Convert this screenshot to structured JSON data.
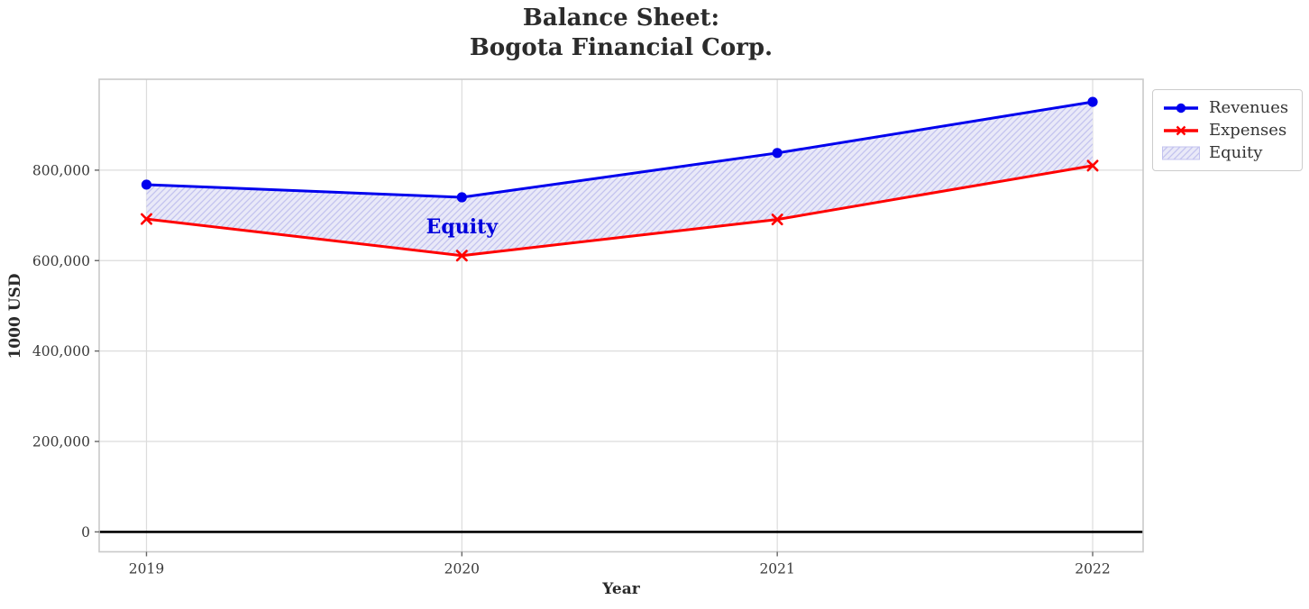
{
  "chart_data": {
    "type": "line",
    "title": "Balance Sheet:\nBogota Financial Corp.",
    "title_lines": [
      "Balance Sheet:",
      "Bogota Financial Corp."
    ],
    "xlabel": "Year",
    "ylabel": "1000 USD",
    "x": [
      2019,
      2020,
      2021,
      2022
    ],
    "xtick_labels": [
      "2019",
      "2020",
      "2021",
      "2022"
    ],
    "series": [
      {
        "name": "Revenues",
        "values": [
          768000,
          740000,
          838000,
          951000
        ],
        "color": "#0000ee",
        "marker": "circle",
        "linewidth": 3
      },
      {
        "name": "Expenses",
        "values": [
          692000,
          611000,
          691000,
          810000
        ],
        "color": "#ff0000",
        "marker": "x",
        "linewidth": 3
      }
    ],
    "area_between": {
      "label": "Equity",
      "upper_series": "Revenues",
      "lower_series": "Expenses",
      "facecolor": "#e9e9f8",
      "hatch": "//",
      "hatch_color": "#c3c3ef"
    },
    "annotation": {
      "text": "Equity",
      "x": 2020,
      "y": 676000,
      "color": "#0000dd"
    },
    "yticks": [
      0,
      200000,
      400000,
      600000,
      800000
    ],
    "ytick_labels": [
      "0",
      "200,000",
      "400,000",
      "600,000",
      "800,000"
    ],
    "xlim": [
      2018.85,
      2022.16
    ],
    "ylim": [
      -44000,
      1001000
    ],
    "grid": true,
    "zero_line": {
      "y": 0,
      "color": "#000000"
    },
    "legend": {
      "position": "outside upper right",
      "entries": [
        "Revenues",
        "Expenses",
        "Equity"
      ]
    },
    "style": {
      "grid_color": "#dcdcdc",
      "spine_color": "#c9c9c9",
      "tick_color": "#666666",
      "tick_label_color": "#3a3a3a"
    }
  }
}
